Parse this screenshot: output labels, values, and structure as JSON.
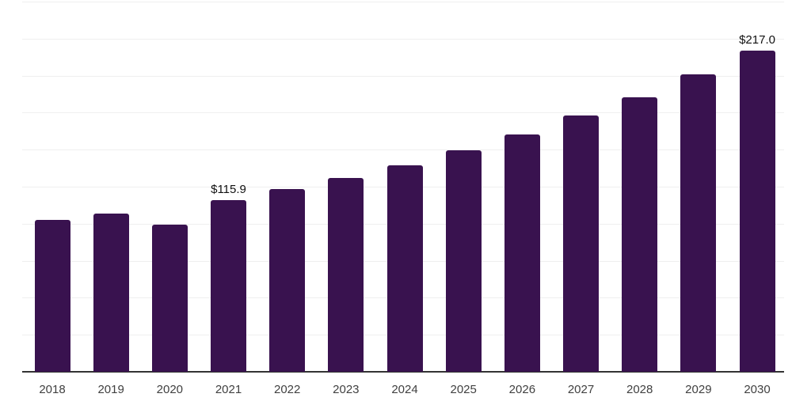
{
  "chart_data": {
    "type": "bar",
    "title": "",
    "xlabel": "",
    "ylabel": "",
    "categories": [
      "2018",
      "2019",
      "2020",
      "2021",
      "2022",
      "2023",
      "2024",
      "2025",
      "2026",
      "2027",
      "2028",
      "2029",
      "2030"
    ],
    "values": [
      102.5,
      107.0,
      99.5,
      115.9,
      123.2,
      131.0,
      139.2,
      149.6,
      160.3,
      173.0,
      185.4,
      200.8,
      217.0
    ],
    "value_labels": {
      "2021": "$115.9",
      "2030": "$217.0"
    },
    "ylim": [
      0,
      250
    ],
    "gridline_step": 25,
    "grid": "horizontal",
    "y_tick_labels_shown": false,
    "legend": "none",
    "colors": {
      "bar": "#39124f",
      "gridline": "#efefef",
      "axis_line": "#333333",
      "tick_label": "#404040",
      "value_label": "#111111",
      "background": "#ffffff"
    }
  }
}
